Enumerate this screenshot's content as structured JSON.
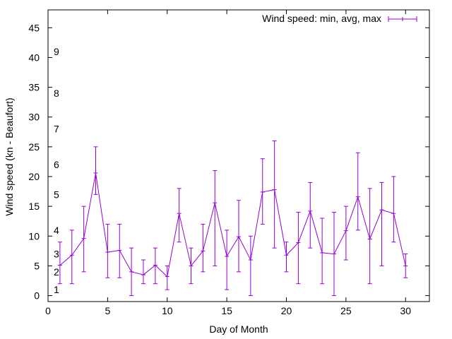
{
  "chart_data": {
    "type": "line",
    "title": "",
    "xlabel": "Day of Month",
    "ylabel": "Wind speed (kn - Beaufort)",
    "xlim": [
      0,
      32
    ],
    "ylim": [
      -1,
      48
    ],
    "x_ticks": [
      0,
      5,
      10,
      15,
      20,
      25,
      30
    ],
    "y_ticks": [
      0,
      5,
      10,
      15,
      20,
      25,
      30,
      35,
      40,
      45
    ],
    "grid": false,
    "legend_position": "top-right",
    "beaufort_labels": [
      {
        "label": "1",
        "y": 1
      },
      {
        "label": "2",
        "y": 4
      },
      {
        "label": "3",
        "y": 7
      },
      {
        "label": "4",
        "y": 11
      },
      {
        "label": "5",
        "y": 17
      },
      {
        "label": "6",
        "y": 22
      },
      {
        "label": "7",
        "y": 28
      },
      {
        "label": "8",
        "y": 34
      },
      {
        "label": "9",
        "y": 41
      }
    ],
    "series": [
      {
        "name": "Wind speed: min, avg, max",
        "color": "#9400d3",
        "points": [
          {
            "x": 1,
            "min": 2,
            "avg": 5.1,
            "max": 9
          },
          {
            "x": 2,
            "min": 2,
            "avg": 6.8,
            "max": 11
          },
          {
            "x": 3,
            "min": 4,
            "avg": 9.6,
            "max": 15
          },
          {
            "x": 4,
            "min": 17,
            "avg": 20.6,
            "max": 25
          },
          {
            "x": 5,
            "min": 3,
            "avg": 7.3,
            "max": 12
          },
          {
            "x": 6,
            "min": 3,
            "avg": 7.6,
            "max": 12
          },
          {
            "x": 7,
            "min": 0,
            "avg": 4,
            "max": 8
          },
          {
            "x": 8,
            "min": 2,
            "avg": 3.5,
            "max": 6
          },
          {
            "x": 9,
            "min": 2,
            "avg": 5.1,
            "max": 8
          },
          {
            "x": 10,
            "min": 1,
            "avg": 3.2,
            "max": 5
          },
          {
            "x": 11,
            "min": 9,
            "avg": 13.8,
            "max": 18
          },
          {
            "x": 12,
            "min": 2,
            "avg": 5,
            "max": 8
          },
          {
            "x": 13,
            "min": 4,
            "avg": 7.5,
            "max": 12
          },
          {
            "x": 14,
            "min": 5,
            "avg": 15.6,
            "max": 21
          },
          {
            "x": 15,
            "min": 1,
            "avg": 6.6,
            "max": 11
          },
          {
            "x": 16,
            "min": 4,
            "avg": 9.9,
            "max": 16
          },
          {
            "x": 17,
            "min": 0,
            "avg": 6,
            "max": 10
          },
          {
            "x": 18,
            "min": 12,
            "avg": 17.4,
            "max": 23
          },
          {
            "x": 19,
            "min": 8,
            "avg": 17.8,
            "max": 26
          },
          {
            "x": 20,
            "min": 4,
            "avg": 6.8,
            "max": 9
          },
          {
            "x": 21,
            "min": 2,
            "avg": 8.9,
            "max": 14
          },
          {
            "x": 22,
            "min": 8,
            "avg": 14.2,
            "max": 19
          },
          {
            "x": 23,
            "min": 2,
            "avg": 7.2,
            "max": 13
          },
          {
            "x": 24,
            "min": 0,
            "avg": 7,
            "max": 14
          },
          {
            "x": 25,
            "min": 6,
            "avg": 10.9,
            "max": 15
          },
          {
            "x": 26,
            "min": 11,
            "avg": 16.6,
            "max": 24
          },
          {
            "x": 27,
            "min": 2,
            "avg": 9.5,
            "max": 18
          },
          {
            "x": 28,
            "min": 5,
            "avg": 14.4,
            "max": 19
          },
          {
            "x": 29,
            "min": 9,
            "avg": 13.8,
            "max": 20
          },
          {
            "x": 30,
            "min": 3,
            "avg": 5,
            "max": 7
          }
        ]
      }
    ]
  }
}
